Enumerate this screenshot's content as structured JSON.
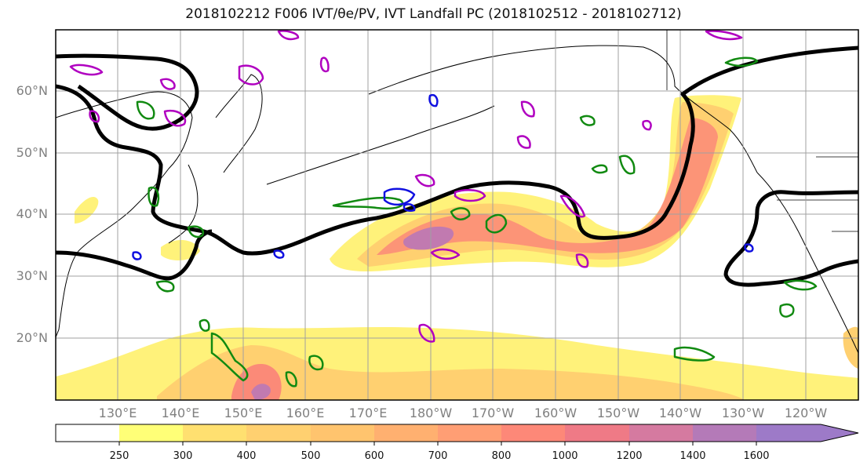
{
  "title": "2018102212 F006 IVT/θe/PV, IVT Landfall PC (2018102512 - 2018102712)",
  "lat_labels": [
    "60°N",
    "50°N",
    "40°N",
    "30°N",
    "20°N"
  ],
  "lon_labels": [
    "130°E",
    "140°E",
    "150°E",
    "160°E",
    "170°E",
    "180°W",
    "170°W",
    "160°W",
    "150°W",
    "140°W",
    "130°W",
    "120°W"
  ],
  "colorbar": {
    "labels": [
      "250",
      "300",
      "400",
      "500",
      "600",
      "700",
      "800",
      "1000",
      "1200",
      "1400",
      "1600"
    ],
    "colors": [
      "#ffffff",
      "#ffff77",
      "#ffe070",
      "#ffd070",
      "#ffc46e",
      "#ffb070",
      "#ff9e74",
      "#fd8878",
      "#ef7a86",
      "#d57aa0",
      "#b47ab8",
      "#9d7ac8"
    ]
  },
  "colors": {
    "ivt_light": "#fff27a",
    "ivt_mid": "#ffc46e",
    "ivt_high": "#fb8a78",
    "ivt_core": "#c17ab0",
    "theta_e": "#000000",
    "pv_green": "#118a11",
    "pv_magenta": "#b000c0",
    "pv_blue": "#1010e0"
  }
}
